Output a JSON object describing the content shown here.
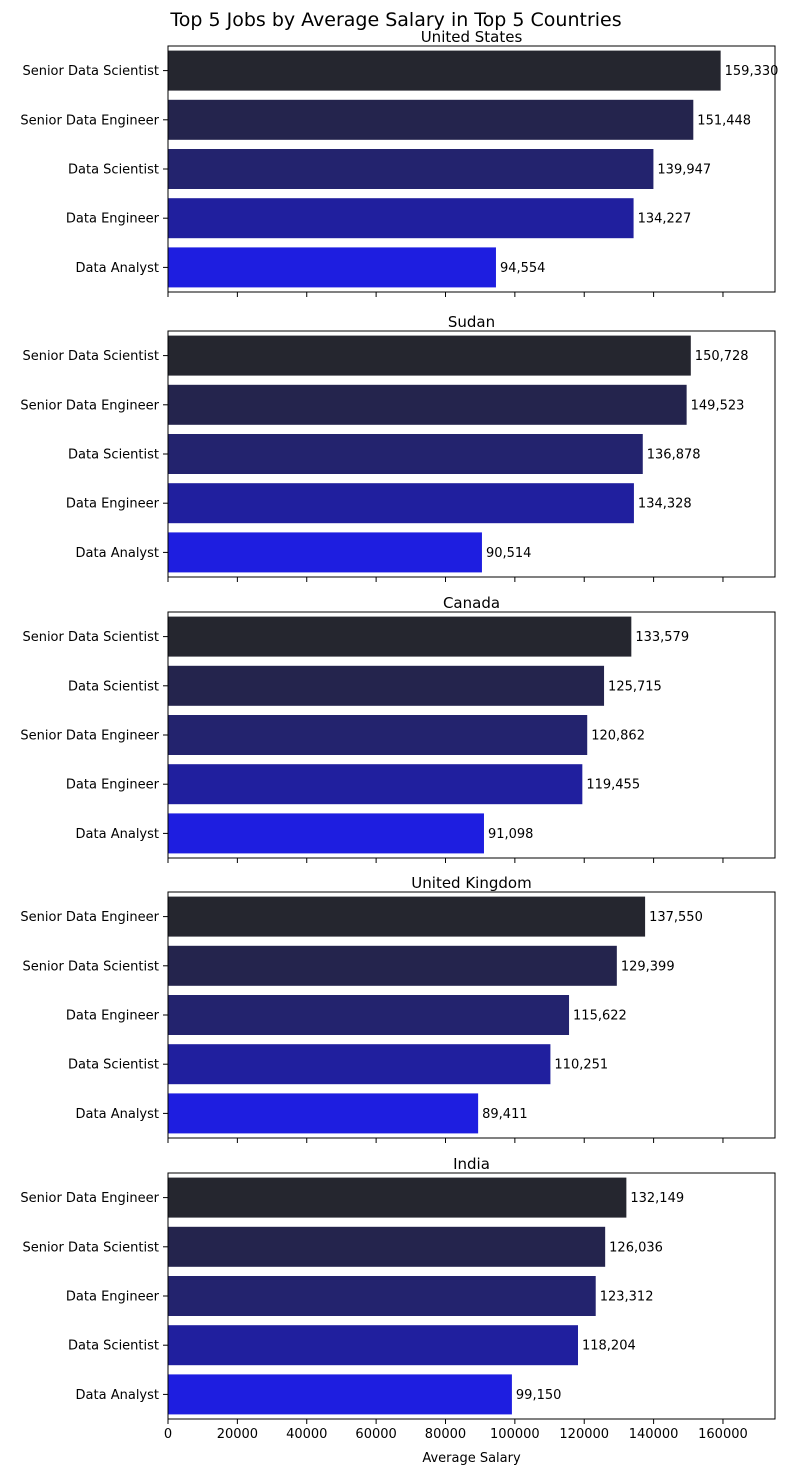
{
  "chart_title": "Top 5 Jobs by Average Salary in Top 5 Countries",
  "x_axis_label": "Average Salary",
  "x_ticks": [
    0,
    20000,
    40000,
    60000,
    80000,
    100000,
    120000,
    140000,
    160000
  ],
  "colors": {
    "gradient": [
      "#25262f",
      "#24244d",
      "#23236e",
      "#201f9e",
      "#1e1ee0"
    ]
  },
  "chart_data": [
    {
      "type": "bar",
      "orientation": "horizontal",
      "title": "United States",
      "categories": [
        "Senior Data Scientist",
        "Senior Data Engineer",
        "Data Scientist",
        "Data Engineer",
        "Data Analyst"
      ],
      "values": [
        159330,
        151448,
        139947,
        134227,
        94554
      ],
      "value_labels": [
        "159,330",
        "151,448",
        "139,947",
        "134,227",
        "94,554"
      ],
      "xlim": [
        0,
        175000
      ],
      "xlabel": "",
      "ylabel": ""
    },
    {
      "type": "bar",
      "orientation": "horizontal",
      "title": "Sudan",
      "categories": [
        "Senior Data Scientist",
        "Senior Data Engineer",
        "Data Scientist",
        "Data Engineer",
        "Data Analyst"
      ],
      "values": [
        150728,
        149523,
        136878,
        134328,
        90514
      ],
      "value_labels": [
        "150,728",
        "149,523",
        "136,878",
        "134,328",
        "90,514"
      ],
      "xlim": [
        0,
        175000
      ],
      "xlabel": "",
      "ylabel": ""
    },
    {
      "type": "bar",
      "orientation": "horizontal",
      "title": "Canada",
      "categories": [
        "Senior Data Scientist",
        "Data Scientist",
        "Senior Data Engineer",
        "Data Engineer",
        "Data Analyst"
      ],
      "values": [
        133579,
        125715,
        120862,
        119455,
        91098
      ],
      "value_labels": [
        "133,579",
        "125,715",
        "120,862",
        "119,455",
        "91,098"
      ],
      "xlim": [
        0,
        175000
      ],
      "xlabel": "",
      "ylabel": ""
    },
    {
      "type": "bar",
      "orientation": "horizontal",
      "title": "United Kingdom",
      "categories": [
        "Senior Data Engineer",
        "Senior Data Scientist",
        "Data Engineer",
        "Data Scientist",
        "Data Analyst"
      ],
      "values": [
        137550,
        129399,
        115622,
        110251,
        89411
      ],
      "value_labels": [
        "137,550",
        "129,399",
        "115,622",
        "110,251",
        "89,411"
      ],
      "xlim": [
        0,
        175000
      ],
      "xlabel": "",
      "ylabel": ""
    },
    {
      "type": "bar",
      "orientation": "horizontal",
      "title": "India",
      "categories": [
        "Senior Data Engineer",
        "Senior Data Scientist",
        "Data Engineer",
        "Data Scientist",
        "Data Analyst"
      ],
      "values": [
        132149,
        126036,
        123312,
        118204,
        99150
      ],
      "value_labels": [
        "132,149",
        "126,036",
        "123,312",
        "118,204",
        "99,150"
      ],
      "xlim": [
        0,
        175000
      ],
      "xlabel": "Average Salary",
      "ylabel": ""
    }
  ]
}
